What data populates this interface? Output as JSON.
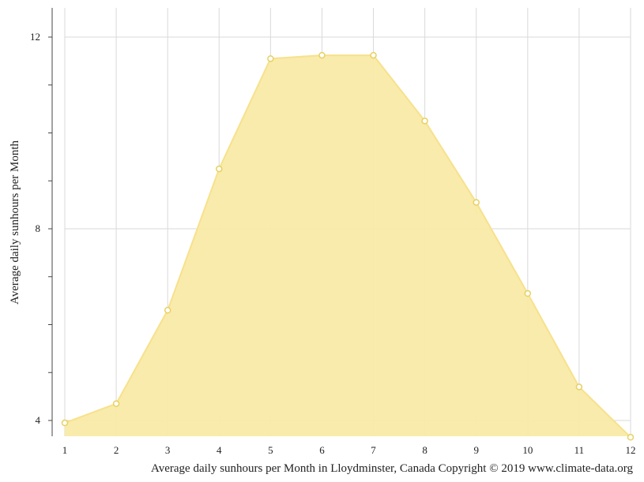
{
  "chart_data": {
    "type": "area",
    "title": "Average daily sunhours per Month in Lloydminster, Canada Copyright © 2019 www.climate-data.org",
    "ylabel": "Average daily sunhours per Month",
    "xlabel": "",
    "x": [
      1,
      2,
      3,
      4,
      5,
      6,
      7,
      8,
      9,
      10,
      11,
      12
    ],
    "x_tick_labels": [
      "1",
      "2",
      "3",
      "4",
      "5",
      "6",
      "7",
      "8",
      "9",
      "10",
      "11",
      "12"
    ],
    "y_tick_labels": [
      "4",
      "8",
      "12"
    ],
    "y_ticks": [
      4,
      8,
      12
    ],
    "ylim": [
      3.65,
      12.6
    ],
    "xlim": [
      1,
      12
    ],
    "grid": true,
    "series": [
      {
        "values": [
          3.95,
          4.35,
          6.3,
          9.25,
          11.55,
          11.62,
          11.62,
          10.25,
          8.55,
          6.65,
          4.7,
          3.65
        ]
      }
    ],
    "colors": {
      "fill": "#f9eaa6",
      "line": "#f7e18c",
      "marker_fill": "#ffffff",
      "marker_stroke": "#e8d060",
      "grid": "#d9d9d9",
      "axis": "#444444"
    }
  }
}
